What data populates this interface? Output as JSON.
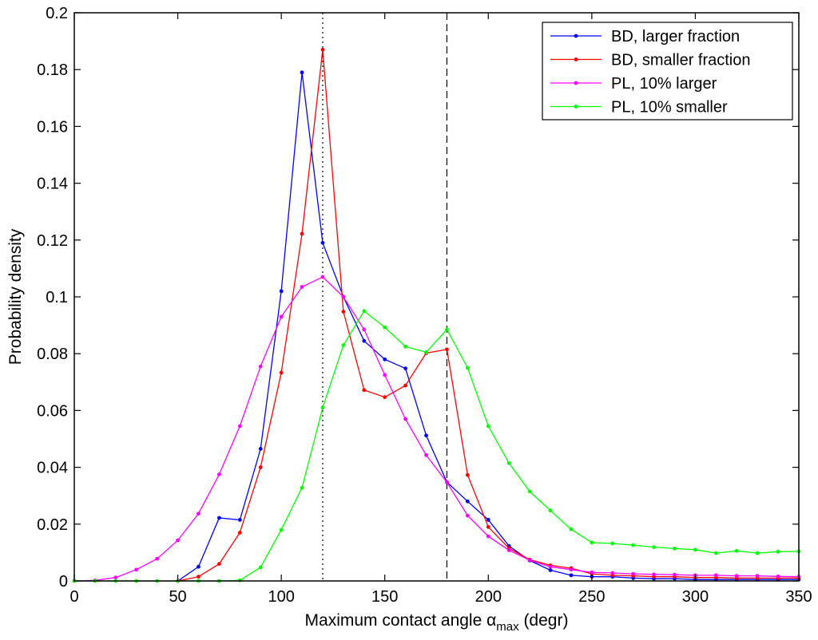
{
  "chart_data": {
    "type": "line",
    "title": "",
    "xlabel": "Maximum contact angle α",
    "xlabel_sub": "max",
    "xlabel_unit": " (degr)",
    "ylabel": "Probability density",
    "xlim": [
      0,
      350
    ],
    "ylim": [
      0,
      0.2
    ],
    "xticks": [
      0,
      50,
      100,
      150,
      200,
      250,
      300,
      350
    ],
    "yticks": [
      0,
      0.02,
      0.04,
      0.06,
      0.08,
      0.1,
      0.12,
      0.14,
      0.16,
      0.18,
      0.2
    ],
    "grid": false,
    "legend_position": "top-right",
    "reference_lines": [
      {
        "x": 120,
        "style": "dotted"
      },
      {
        "x": 180,
        "style": "dashed"
      }
    ],
    "series": [
      {
        "name": "BD, larger fraction",
        "color": "#0000ff",
        "x": [
          50,
          60,
          70,
          80,
          90,
          100,
          110,
          120,
          130,
          140,
          150,
          160,
          170,
          180,
          190,
          200,
          210,
          220,
          230,
          240,
          250,
          260,
          270,
          280,
          290,
          300,
          310,
          320,
          330,
          340,
          350
        ],
        "y": [
          0,
          0.005,
          0.0222,
          0.0215,
          0.0465,
          0.102,
          0.179,
          0.119,
          0.1,
          0.0845,
          0.078,
          0.0748,
          0.0512,
          0.0348,
          0.028,
          0.0215,
          0.0123,
          0.0072,
          0.0038,
          0.002,
          0.0015,
          0.0015,
          0.001,
          0.0008,
          0.0008,
          0.0005,
          0.0005,
          0.0005,
          0.0005,
          0.0005,
          0.0005
        ]
      },
      {
        "name": "BD, smaller fraction",
        "color": "#ff0000",
        "x": [
          50,
          60,
          70,
          80,
          90,
          100,
          110,
          120,
          130,
          140,
          150,
          160,
          170,
          180,
          190,
          200,
          210,
          220,
          230,
          240,
          250,
          260,
          270,
          280,
          290,
          300,
          310,
          320,
          330,
          340,
          350
        ],
        "y": [
          0,
          0.0015,
          0.006,
          0.017,
          0.04,
          0.0733,
          0.1222,
          0.187,
          0.0948,
          0.0672,
          0.0647,
          0.0688,
          0.0802,
          0.0815,
          0.0373,
          0.019,
          0.0115,
          0.0075,
          0.0055,
          0.0045,
          0.0025,
          0.002,
          0.0018,
          0.0015,
          0.0015,
          0.0012,
          0.0012,
          0.001,
          0.001,
          0.001,
          0.001
        ]
      },
      {
        "name": "PL, 10% larger",
        "color": "#ff00ff",
        "x": [
          0,
          10,
          20,
          30,
          40,
          50,
          60,
          70,
          80,
          90,
          100,
          110,
          120,
          130,
          140,
          150,
          160,
          170,
          180,
          190,
          200,
          210,
          220,
          230,
          240,
          250,
          260,
          270,
          280,
          290,
          300,
          310,
          320,
          330,
          340,
          350
        ],
        "y": [
          0,
          0.0002,
          0.0012,
          0.004,
          0.0078,
          0.0143,
          0.0237,
          0.0375,
          0.0545,
          0.0755,
          0.093,
          0.1035,
          0.107,
          0.1,
          0.0885,
          0.0725,
          0.057,
          0.0443,
          0.0347,
          0.023,
          0.0157,
          0.0108,
          0.0073,
          0.005,
          0.004,
          0.003,
          0.0028,
          0.0025,
          0.0023,
          0.0022,
          0.002,
          0.002,
          0.0018,
          0.0018,
          0.0016,
          0.0015
        ]
      },
      {
        "name": "PL, 10% smaller",
        "color": "#00ff00",
        "x": [
          0,
          10,
          20,
          30,
          40,
          50,
          60,
          70,
          80,
          90,
          100,
          110,
          120,
          130,
          140,
          150,
          160,
          170,
          180,
          190,
          200,
          210,
          220,
          230,
          240,
          250,
          260,
          270,
          280,
          290,
          300,
          310,
          320,
          330,
          340,
          350
        ],
        "y": [
          0,
          0,
          0,
          0,
          0,
          0,
          0,
          0,
          0.0002,
          0.0048,
          0.018,
          0.0328,
          0.061,
          0.083,
          0.095,
          0.0893,
          0.0825,
          0.0805,
          0.0885,
          0.075,
          0.0545,
          0.0415,
          0.0315,
          0.0248,
          0.0182,
          0.0135,
          0.0132,
          0.0126,
          0.0119,
          0.0114,
          0.011,
          0.0098,
          0.0106,
          0.0098,
          0.0103,
          0.0104
        ]
      }
    ]
  }
}
